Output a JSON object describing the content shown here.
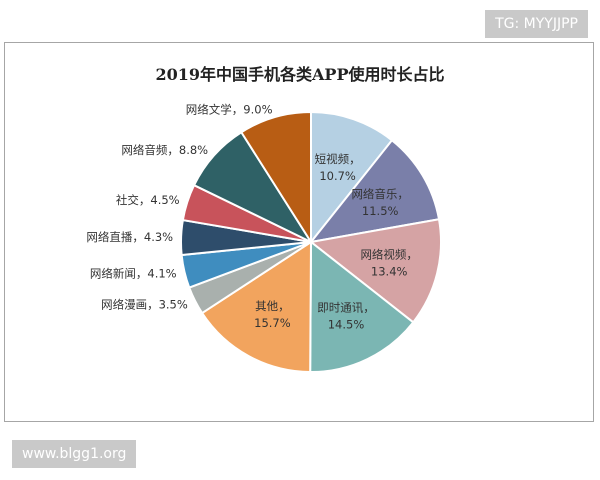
{
  "watermarks": {
    "top": "TG: MYYJJPP",
    "bottom": "www.blgg1.org"
  },
  "chart_data": {
    "type": "pie",
    "title": "2019年中国手机各类APP使用时长占比",
    "slices": [
      {
        "name": "短视频",
        "value": 10.7,
        "value_label": "10.7%",
        "color": "#b5d0e3",
        "label_inside": true
      },
      {
        "name": "网络音乐",
        "value": 11.5,
        "value_label": "11.5%",
        "color": "#7a7fa9",
        "label_inside": true
      },
      {
        "name": "网络视频",
        "value": 13.4,
        "value_label": "13.4%",
        "color": "#d5a3a4",
        "label_inside": true
      },
      {
        "name": "即时通讯",
        "value": 14.5,
        "value_label": "14.5%",
        "color": "#7bb6b3",
        "label_inside": true
      },
      {
        "name": "其他",
        "value": 15.7,
        "value_label": "15.7%",
        "color": "#f2a45e",
        "label_inside": true
      },
      {
        "name": "网络漫画",
        "value": 3.5,
        "value_label": "3.5%",
        "color": "#a9b0ad",
        "label_inside": false
      },
      {
        "name": "网络新闻",
        "value": 4.1,
        "value_label": "4.1%",
        "color": "#3f8dbf",
        "label_inside": false
      },
      {
        "name": "网络直播",
        "value": 4.3,
        "value_label": "4.3%",
        "color": "#2e4d6b",
        "label_inside": false
      },
      {
        "name": "社交",
        "value": 4.5,
        "value_label": "4.5%",
        "color": "#c8535b",
        "label_inside": false
      },
      {
        "name": "网络音频",
        "value": 8.8,
        "value_label": "8.8%",
        "color": "#2f6166",
        "label_inside": false
      },
      {
        "name": "网络文学",
        "value": 9.0,
        "value_label": "9.0%",
        "color": "#b85d14",
        "label_inside": false
      }
    ]
  }
}
